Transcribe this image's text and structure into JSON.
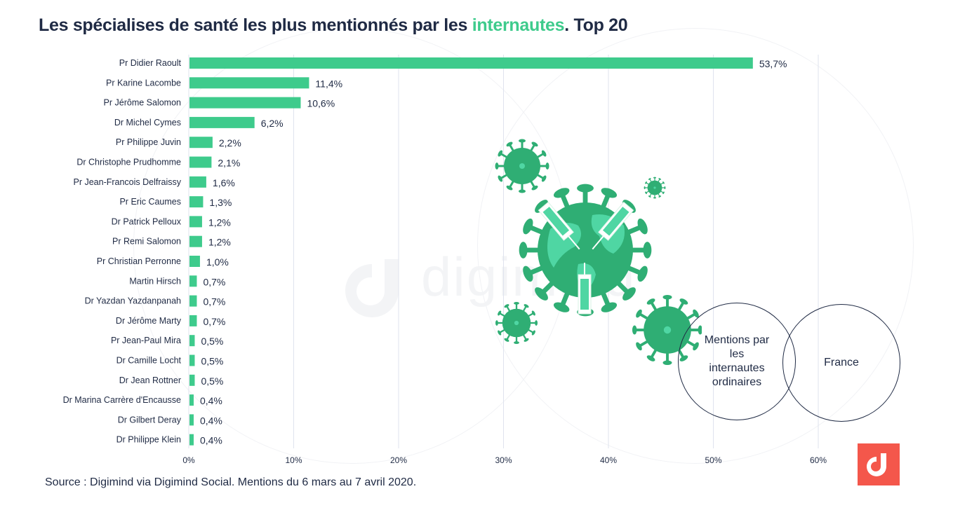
{
  "title": {
    "prefix": "Les spécialises de santé les plus mentionnés par les ",
    "accent": "internautes",
    "suffix": ". Top 20"
  },
  "colors": {
    "bar": "#3ecb8c",
    "accent": "#3ecb8c",
    "text": "#1f2a44",
    "grid": "#dfe3ee",
    "logo": "#f4574b"
  },
  "chart_data": {
    "type": "bar",
    "orientation": "horizontal",
    "title": "Les spécialises de santé les plus mentionnés par les internautes. Top 20",
    "xlabel": "",
    "ylabel": "",
    "xlim": [
      0,
      60
    ],
    "grid": true,
    "xticks": [
      "0%",
      "10%",
      "20%",
      "30%",
      "40%",
      "50%",
      "60%"
    ],
    "xtick_values": [
      0,
      10,
      20,
      30,
      40,
      50,
      60
    ],
    "categories": [
      "Pr Didier Raoult",
      "Pr Karine Lacombe",
      "Pr Jérôme Salomon",
      "Dr Michel Cymes",
      "Pr Philippe Juvin",
      "Dr Christophe Prudhomme",
      "Pr Jean-Francois Delfraissy",
      "Pr Eric Caumes",
      "Dr Patrick Pelloux",
      "Pr Remi Salomon",
      "Pr Christian Perronne",
      "Martin Hirsch",
      "Dr Yazdan Yazdanpanah",
      "Dr Jérôme Marty",
      "Pr Jean-Paul Mira",
      "Dr Camille Locht",
      "Dr Jean Rottner",
      "Dr Marina Carrère d'Encausse",
      "Dr Gilbert Deray",
      "Dr Philippe Klein"
    ],
    "values": [
      53.7,
      11.4,
      10.6,
      6.2,
      2.2,
      2.1,
      1.6,
      1.3,
      1.2,
      1.2,
      1.0,
      0.7,
      0.7,
      0.7,
      0.5,
      0.5,
      0.5,
      0.4,
      0.4,
      0.4
    ],
    "value_labels": [
      "53,7%",
      "11,4%",
      "10,6%",
      "6,2%",
      "2,2%",
      "2,1%",
      "1,6%",
      "1,3%",
      "1,2%",
      "1,2%",
      "1,0%",
      "0,7%",
      "0,7%",
      "0,7%",
      "0,5%",
      "0,5%",
      "0,5%",
      "0,4%",
      "0,4%",
      "0,4%"
    ]
  },
  "venn": {
    "left_label": "Mentions par les internautes ordinaires",
    "right_label": "France"
  },
  "watermark": "digimind",
  "source": "Source : Digimind via Digimind Social. Mentions du 6 mars au 7 avril 2020."
}
